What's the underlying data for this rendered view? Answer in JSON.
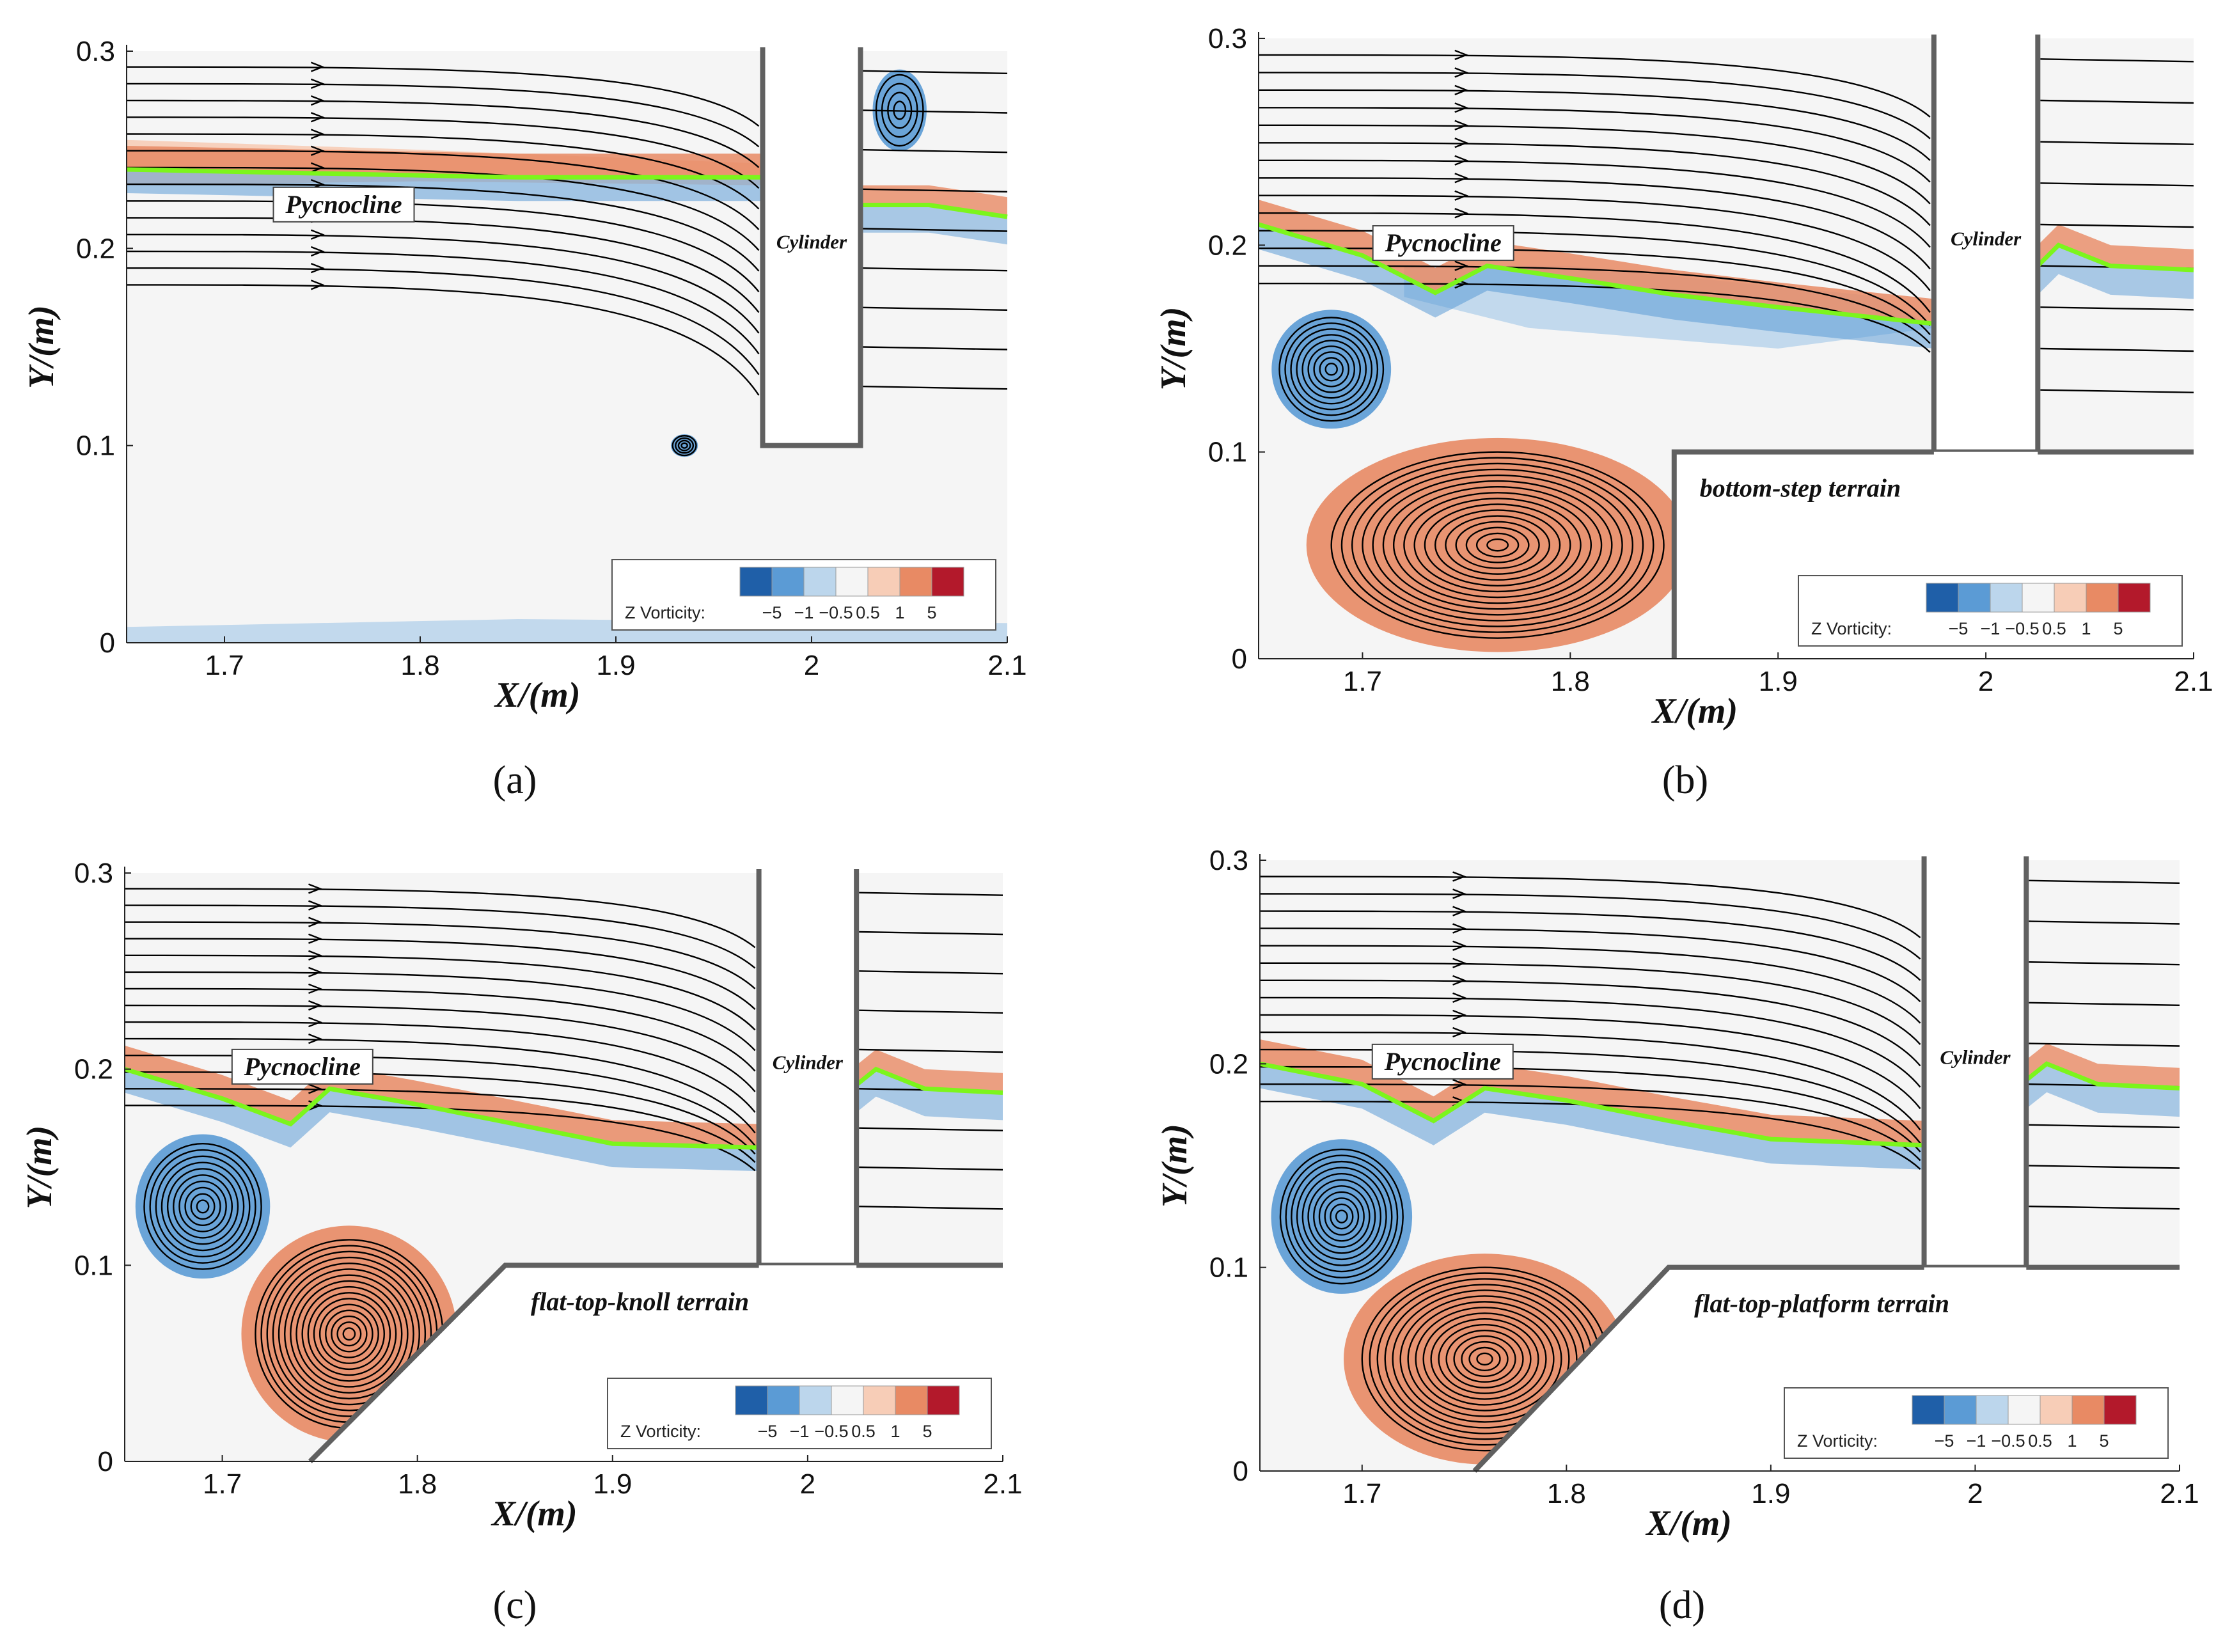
{
  "colors": {
    "vort_neg_strong": "#1f5fa8",
    "vort_neg": "#5b9bd5",
    "vort_neg_weak": "#bcd6ec",
    "vort_zero": "#f5f5f5",
    "vort_pos_weak": "#f7cdb7",
    "vort_pos": "#e88a64",
    "vort_pos_strong": "#b3192b",
    "pycnocline": "#7cf51c",
    "streamline": "#000000",
    "wall": "#606060"
  },
  "chart_data": [
    {
      "id": "a",
      "type": "streamline",
      "caption": "(a)",
      "xlabel": "X/(m)",
      "ylabel": "Y/(m)",
      "xlim": [
        1.65,
        2.1
      ],
      "ylim": [
        0,
        0.3
      ],
      "xticks": [
        "1.7",
        "1.8",
        "1.9",
        "2",
        "2.1"
      ],
      "yticks": [
        "0",
        "0.1",
        "0.2",
        "0.3"
      ],
      "pycnocline_label": "Pycnocline",
      "cylinder_label": "Cylinder",
      "terrain_label": "",
      "colorbar": {
        "title": "Z Vorticity:",
        "ticks": [
          "−5",
          "−1",
          "−0.5",
          "0.5",
          "1",
          "5"
        ]
      },
      "cylinder": {
        "x": [
          1.975,
          2.025
        ],
        "bottom": 0.1
      },
      "terrain": null,
      "pycnocline": [
        [
          1.65,
          0.24
        ],
        [
          1.75,
          0.238
        ],
        [
          1.85,
          0.236
        ],
        [
          1.975,
          0.236
        ]
      ],
      "pycnocline_right": [
        [
          2.025,
          0.222
        ],
        [
          2.06,
          0.222
        ],
        [
          2.1,
          0.216
        ]
      ],
      "vortices": [
        {
          "x": 1.935,
          "y": 0.1,
          "rx": 0.006,
          "ry": 0.005,
          "sign": -1
        },
        {
          "x": 2.045,
          "y": 0.27,
          "rx": 0.012,
          "ry": 0.018,
          "sign": -1
        }
      ],
      "vorticity_bands": [
        {
          "pts": [
            [
              1.65,
              0.255
            ],
            [
              1.8,
              0.25
            ],
            [
              1.975,
              0.243
            ],
            [
              1.975,
              0.232
            ],
            [
              1.8,
              0.234
            ],
            [
              1.65,
              0.232
            ]
          ],
          "level": 1
        },
        {
          "pts": [
            [
              1.65,
              0.008
            ],
            [
              1.85,
              0.012
            ],
            [
              2.1,
              0.01
            ],
            [
              2.1,
              0.0
            ],
            [
              1.65,
              0.0
            ]
          ],
          "level": -1
        }
      ]
    },
    {
      "id": "b",
      "type": "streamline",
      "caption": "(b)",
      "xlabel": "X/(m)",
      "ylabel": "Y/(m)",
      "xlim": [
        1.65,
        2.1
      ],
      "ylim": [
        0,
        0.3
      ],
      "xticks": [
        "1.7",
        "1.8",
        "1.9",
        "2",
        "2.1"
      ],
      "yticks": [
        "0",
        "0.1",
        "0.2",
        "0.3"
      ],
      "pycnocline_label": "Pycnocline",
      "cylinder_label": "Cylinder",
      "terrain_label": "bottom-step terrain",
      "colorbar": {
        "title": "Z Vorticity:",
        "ticks": [
          "−5",
          "−1",
          "−0.5",
          "0.5",
          "1",
          "5"
        ]
      },
      "cylinder": {
        "x": [
          1.975,
          2.025
        ],
        "bottom": 0.1
      },
      "terrain": {
        "kind": "step",
        "x_start": 1.85,
        "top": 0.1
      },
      "pycnocline": [
        [
          1.65,
          0.21
        ],
        [
          1.7,
          0.195
        ],
        [
          1.735,
          0.177
        ],
        [
          1.76,
          0.19
        ],
        [
          1.8,
          0.184
        ],
        [
          1.85,
          0.176
        ],
        [
          1.9,
          0.17
        ],
        [
          1.975,
          0.162
        ]
      ],
      "pycnocline_right": [
        [
          2.025,
          0.19
        ],
        [
          2.035,
          0.2
        ],
        [
          2.06,
          0.19
        ],
        [
          2.1,
          0.188
        ]
      ],
      "vortices": [
        {
          "x": 1.685,
          "y": 0.14,
          "rx": 0.025,
          "ry": 0.025,
          "sign": -1
        },
        {
          "x": 1.765,
          "y": 0.055,
          "rx": 0.08,
          "ry": 0.045,
          "sign": 1
        }
      ],
      "vorticity_bands": [
        {
          "pts": [
            [
              1.72,
              0.19
            ],
            [
              1.8,
              0.19
            ],
            [
              1.95,
              0.175
            ],
            [
              1.975,
              0.16
            ],
            [
              1.9,
              0.15
            ],
            [
              1.78,
              0.16
            ],
            [
              1.72,
              0.175
            ]
          ],
          "level": -1
        }
      ]
    },
    {
      "id": "c",
      "type": "streamline",
      "caption": "(c)",
      "xlabel": "X/(m)",
      "ylabel": "Y/(m)",
      "xlim": [
        1.65,
        2.1
      ],
      "ylim": [
        0,
        0.3
      ],
      "xticks": [
        "1.7",
        "1.8",
        "1.9",
        "2",
        "2.1"
      ],
      "yticks": [
        "0",
        "0.1",
        "0.2",
        "0.3"
      ],
      "pycnocline_label": "Pycnocline",
      "cylinder_label": "Cylinder",
      "terrain_label": "flat-top-knoll terrain",
      "colorbar": {
        "title": "Z Vorticity:",
        "ticks": [
          "−5",
          "−1",
          "−0.5",
          "0.5",
          "1",
          "5"
        ]
      },
      "cylinder": {
        "x": [
          1.975,
          2.025
        ],
        "bottom": 0.1
      },
      "terrain": {
        "kind": "knoll",
        "x_foot": 1.745,
        "x_top": 1.845,
        "top": 0.1
      },
      "pycnocline": [
        [
          1.65,
          0.2
        ],
        [
          1.7,
          0.185
        ],
        [
          1.735,
          0.172
        ],
        [
          1.755,
          0.19
        ],
        [
          1.8,
          0.182
        ],
        [
          1.85,
          0.172
        ],
        [
          1.9,
          0.162
        ],
        [
          1.975,
          0.16
        ]
      ],
      "pycnocline_right": [
        [
          2.025,
          0.192
        ],
        [
          2.035,
          0.2
        ],
        [
          2.06,
          0.19
        ],
        [
          2.1,
          0.188
        ]
      ],
      "vortices": [
        {
          "x": 1.69,
          "y": 0.13,
          "rx": 0.03,
          "ry": 0.032,
          "sign": -1
        },
        {
          "x": 1.765,
          "y": 0.065,
          "rx": 0.048,
          "ry": 0.048,
          "sign": 1
        }
      ],
      "vorticity_bands": []
    },
    {
      "id": "d",
      "type": "streamline",
      "caption": "(d)",
      "xlabel": "X/(m)",
      "ylabel": "Y/(m)",
      "xlim": [
        1.65,
        2.1
      ],
      "ylim": [
        0,
        0.3
      ],
      "xticks": [
        "1.7",
        "1.8",
        "1.9",
        "2",
        "2.1"
      ],
      "yticks": [
        "0",
        "0.1",
        "0.2",
        "0.3"
      ],
      "pycnocline_label": "Pycnocline",
      "cylinder_label": "Cylinder",
      "terrain_label": "flat-top-platform terrain",
      "colorbar": {
        "title": "Z Vorticity:",
        "ticks": [
          "−5",
          "−1",
          "−0.5",
          "0.5",
          "1",
          "5"
        ]
      },
      "cylinder": {
        "x": [
          1.975,
          2.025
        ],
        "bottom": 0.1
      },
      "terrain": {
        "kind": "knoll",
        "x_foot": 1.755,
        "x_top": 1.85,
        "top": 0.1
      },
      "pycnocline": [
        [
          1.65,
          0.2
        ],
        [
          1.7,
          0.19
        ],
        [
          1.735,
          0.172
        ],
        [
          1.76,
          0.188
        ],
        [
          1.8,
          0.182
        ],
        [
          1.85,
          0.172
        ],
        [
          1.9,
          0.163
        ],
        [
          1.975,
          0.16
        ]
      ],
      "pycnocline_right": [
        [
          2.025,
          0.192
        ],
        [
          2.035,
          0.2
        ],
        [
          2.06,
          0.19
        ],
        [
          2.1,
          0.188
        ]
      ],
      "vortices": [
        {
          "x": 1.69,
          "y": 0.125,
          "rx": 0.03,
          "ry": 0.033,
          "sign": -1
        },
        {
          "x": 1.76,
          "y": 0.055,
          "rx": 0.06,
          "ry": 0.045,
          "sign": 1
        }
      ],
      "vorticity_bands": []
    }
  ]
}
